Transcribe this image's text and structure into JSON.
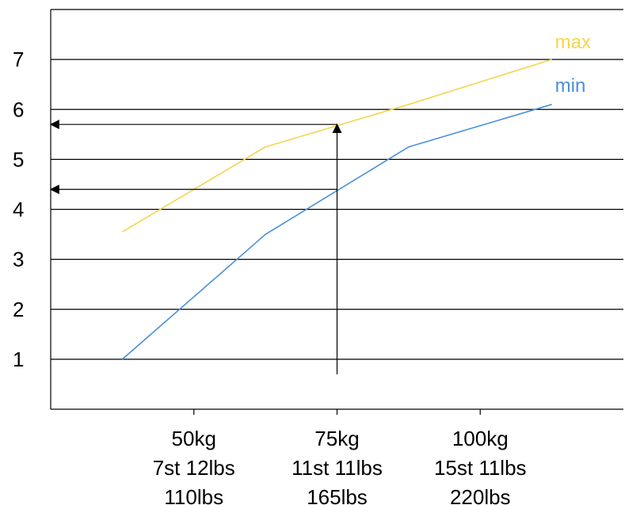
{
  "chart_data": {
    "type": "line",
    "x": [
      1.5,
      2.5,
      3.5,
      4.5
    ],
    "x_ticks": [
      {
        "x": 2,
        "lines": [
          "50kg",
          "7st 12lbs",
          "110lbs"
        ]
      },
      {
        "x": 3,
        "lines": [
          "75kg",
          "11st 11lbs",
          "165lbs"
        ]
      },
      {
        "x": 4,
        "lines": [
          "100kg",
          "15st 11lbs",
          "220lbs"
        ]
      }
    ],
    "y_ticks": [
      "1",
      "2",
      "3",
      "4",
      "5",
      "6",
      "7"
    ],
    "xlim": [
      1,
      5
    ],
    "ylim": [
      0,
      8
    ],
    "grid": "horizontal",
    "series": [
      {
        "name": "max",
        "color": "#f4d54c",
        "values": [
          3.55,
          5.25,
          6.1,
          7.0
        ]
      },
      {
        "name": "min",
        "color": "#4a8fdc",
        "values": [
          1.0,
          3.5,
          5.25,
          6.1
        ]
      }
    ],
    "annotation": {
      "x": 3,
      "from_y": 0.7,
      "to_y": 5.7,
      "min_reading": 4.4,
      "max_reading": 5.7
    }
  }
}
